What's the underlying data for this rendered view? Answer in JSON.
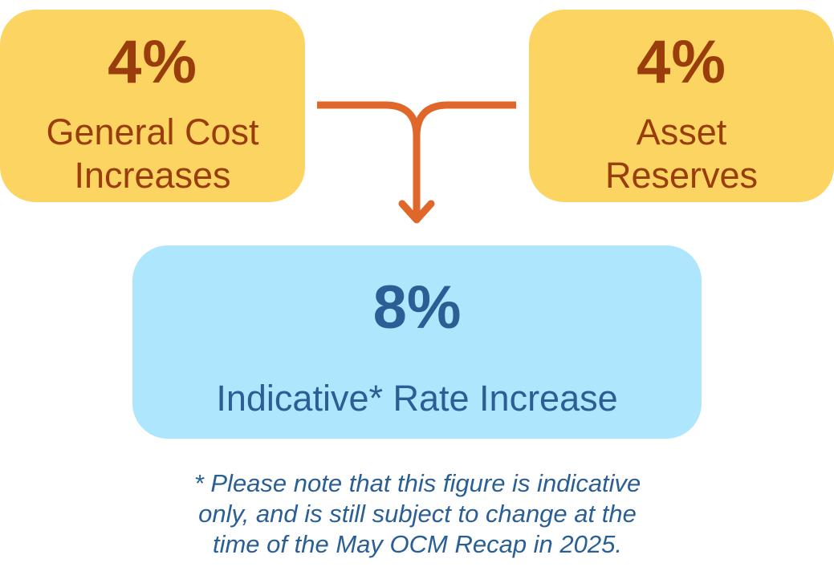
{
  "inputs": [
    {
      "value": "4%",
      "label_line1": "General Cost",
      "label_line2": "Increases"
    },
    {
      "value": "4%",
      "label_line1": "Asset",
      "label_line2": "Reserves"
    }
  ],
  "result": {
    "value": "8%",
    "label": "Indicative* Rate Increase"
  },
  "footnote": {
    "line1": "* Please note that this figure is indicative",
    "line2": "only, and is still subject to change at the",
    "line3": "time of the May OCM Recap in 2025."
  },
  "colors": {
    "input_fill": "#fcd462",
    "input_text": "#9a3d0c",
    "result_fill": "#aee6fd",
    "result_text": "#2a5f96",
    "connector": "#e0672a"
  }
}
